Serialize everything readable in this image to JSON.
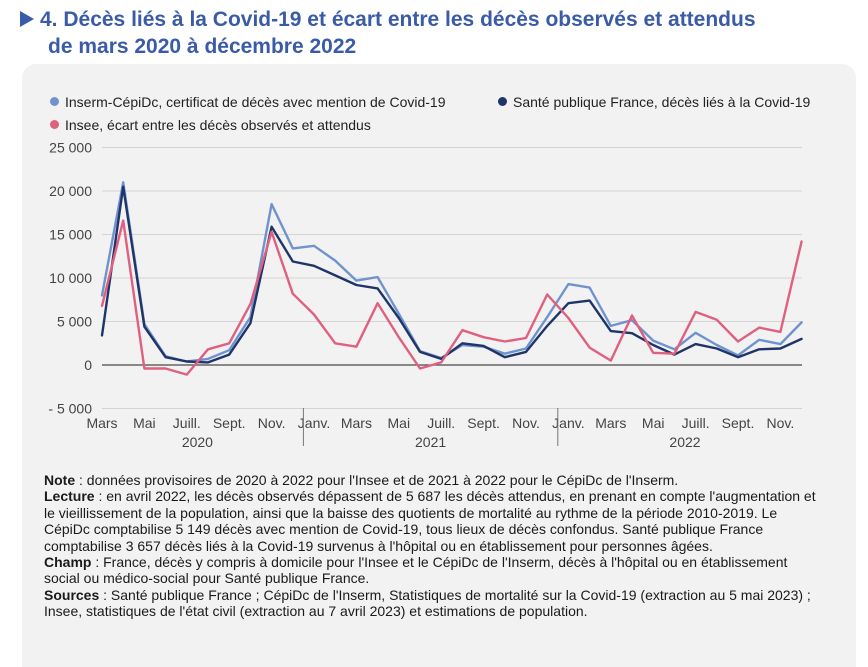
{
  "title": {
    "line1": "4. Décès liés à la Covid-19 et écart entre les décès observés et attendus",
    "line2": "de mars 2020 à décembre 2022"
  },
  "legend": [
    {
      "name": "Inserm-CépiDc, certificat de décès avec mention de Covid-19",
      "color": "#6f93cf"
    },
    {
      "name": "Santé publique France, décès liés à la Covid-19",
      "color": "#1f3469"
    },
    {
      "name": "Insee, écart entre les décès observés et attendus",
      "color": "#e0607f"
    }
  ],
  "chart_data": {
    "type": "line",
    "x": [
      "2020-03",
      "2020-04",
      "2020-05",
      "2020-06",
      "2020-07",
      "2020-08",
      "2020-09",
      "2020-10",
      "2020-11",
      "2020-12",
      "2021-01",
      "2021-02",
      "2021-03",
      "2021-04",
      "2021-05",
      "2021-06",
      "2021-07",
      "2021-08",
      "2021-09",
      "2021-10",
      "2021-11",
      "2021-12",
      "2022-01",
      "2022-02",
      "2022-03",
      "2022-04",
      "2022-05",
      "2022-06",
      "2022-07",
      "2022-08",
      "2022-09",
      "2022-10",
      "2022-11",
      "2022-12"
    ],
    "x_tick_labels": [
      "Mars",
      "Mai",
      "Juill.",
      "Sept.",
      "Nov.",
      "Janv.",
      "Mars",
      "Mai",
      "Juill.",
      "Sept.",
      "Nov.",
      "Janv.",
      "Mars",
      "Mai",
      "Juill.",
      "Sept.",
      "Nov."
    ],
    "year_labels": [
      "2020",
      "2021",
      "2022"
    ],
    "y_ticks": [
      -5000,
      0,
      5000,
      10000,
      15000,
      20000,
      25000
    ],
    "y_tick_labels": [
      "- 5 000",
      "0",
      "5 000",
      "10 000",
      "15 000",
      "20 000",
      "25 000"
    ],
    "ylim": [
      -5000,
      25000
    ],
    "grid": "horizontal",
    "legend_position": "top",
    "series": [
      {
        "name": "Inserm-CépiDc, certificat de décès avec mention de Covid-19",
        "color": "#6f93cf",
        "values": [
          8000,
          21000,
          4700,
          1000,
          400,
          700,
          1700,
          5500,
          18500,
          13400,
          13700,
          12000,
          9700,
          10100,
          5900,
          1600,
          800,
          2300,
          2100,
          1300,
          1900,
          5500,
          9300,
          8900,
          4500,
          5149,
          2800,
          1800,
          3700,
          2300,
          1100,
          2900,
          2400,
          4900
        ]
      },
      {
        "name": "Santé publique France, décès liés à la Covid-19",
        "color": "#1f3469",
        "values": [
          3400,
          20500,
          4400,
          900,
          400,
          300,
          1200,
          4800,
          15900,
          11900,
          11400,
          10300,
          9200,
          8800,
          5400,
          1500,
          700,
          2500,
          2200,
          900,
          1500,
          4500,
          7100,
          7400,
          3900,
          3657,
          2300,
          1200,
          2400,
          1900,
          900,
          1800,
          1900,
          3000
        ]
      },
      {
        "name": "Insee, écart entre les décès observés et attendus",
        "color": "#e0607f",
        "values": [
          6800,
          16600,
          -400,
          -400,
          -1100,
          1800,
          2500,
          7000,
          15300,
          8200,
          5800,
          2500,
          2100,
          7100,
          3200,
          -400,
          300,
          4000,
          3200,
          2700,
          3100,
          8100,
          5400,
          2000,
          500,
          5687,
          1400,
          1300,
          6100,
          5200,
          2700,
          4300,
          3800,
          14200
        ]
      }
    ]
  },
  "notes": [
    {
      "label": "Note",
      "text": " : données provisoires de 2020 à 2022 pour l'Insee et de 2021 à 2022 pour le CépiDc de l'Inserm."
    },
    {
      "label": "Lecture",
      "text": " : en avril 2022, les décès observés dépassent de 5 687 les décès attendus, en prenant en compte l'augmentation et le vieillissement de la population, ainsi que la baisse des quotients de mortalité au rythme de la période 2010-2019. Le CépiDc comptabilise 5 149 décès avec mention de Covid-19, tous lieux de décès confondus. Santé publique France comptabilise 3 657 décès liés à la Covid-19 survenus à l'hôpital ou en établissement pour personnes âgées."
    },
    {
      "label": "Champ",
      "text": " : France, décès y compris à domicile pour l'Insee et le CépiDc de l'Inserm, décès à l'hôpital ou en établissement social ou médico-social pour Santé publique France."
    },
    {
      "label": "Sources",
      "text": " : Santé publique France ; CépiDc de l'Inserm, Statistiques de mortalité sur la Covid-19 (extraction au 5 mai 2023) ; Insee, statistiques de l'état civil (extraction au 7 avril 2023) et estimations de population."
    }
  ]
}
